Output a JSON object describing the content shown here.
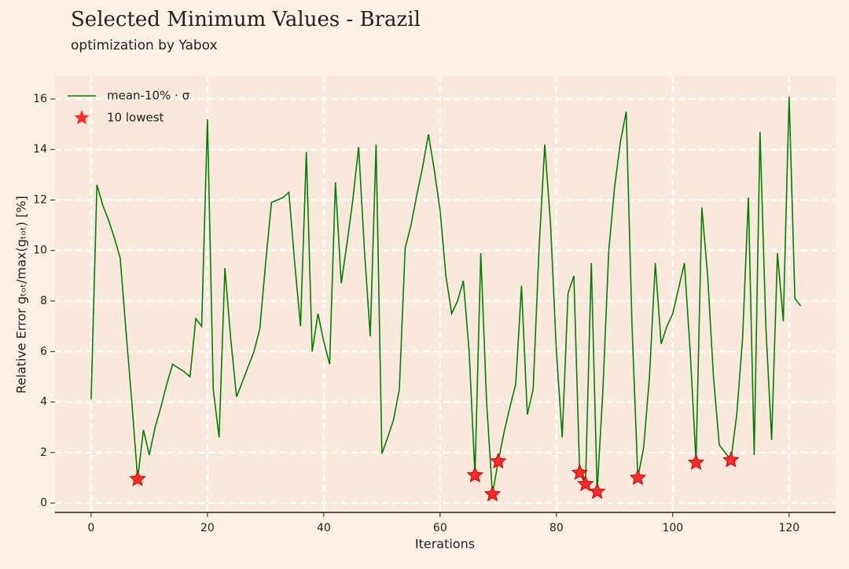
{
  "chart_data": {
    "type": "line",
    "title": "Selected Minimum Values - Brazil",
    "subtitle": "optimization by Yabox",
    "xlabel": "Iterations",
    "ylabel": "Relative Error gₜₒₜ/max(gₜₒₜ) [%]",
    "xlim": [
      -6.2,
      128
    ],
    "ylim": [
      -0.37,
      16.9
    ],
    "xticks": [
      0,
      20,
      40,
      60,
      80,
      100,
      120
    ],
    "yticks": [
      0,
      2,
      4,
      6,
      8,
      10,
      12,
      14,
      16
    ],
    "grid": true,
    "legend": "upper left",
    "series": [
      {
        "name": "mean-10% · σ",
        "type": "line",
        "color": "#008000",
        "x": [
          0,
          1,
          2,
          3,
          4,
          5,
          6,
          7,
          8,
          9,
          10,
          11,
          12,
          13,
          14,
          15,
          16,
          17,
          18,
          19,
          20,
          21,
          22,
          23,
          24,
          25,
          26,
          27,
          28,
          29,
          30,
          31,
          32,
          33,
          34,
          35,
          36,
          37,
          38,
          39,
          40,
          41,
          42,
          43,
          44,
          45,
          46,
          47,
          48,
          49,
          50,
          51,
          52,
          53,
          54,
          55,
          56,
          57,
          58,
          59,
          60,
          61,
          62,
          63,
          64,
          65,
          66,
          67,
          68,
          69,
          70,
          71,
          72,
          73,
          74,
          75,
          76,
          77,
          78,
          79,
          80,
          81,
          82,
          83,
          84,
          85,
          86,
          87,
          88,
          89,
          90,
          91,
          92,
          93,
          94,
          95,
          96,
          97,
          98,
          99,
          100,
          101,
          102,
          103,
          104,
          105,
          106,
          107,
          108,
          109,
          110,
          111,
          112,
          113,
          114,
          115,
          116,
          117,
          118,
          119,
          120,
          121,
          122
        ],
        "values": [
          4.1,
          12.6,
          11.8,
          11.2,
          10.5,
          9.7,
          6.8,
          4.0,
          0.95,
          2.9,
          1.9,
          3.0,
          3.8,
          4.7,
          5.5,
          5.35,
          5.2,
          5.0,
          7.3,
          7.0,
          15.2,
          4.5,
          2.6,
          9.3,
          6.5,
          4.2,
          4.8,
          5.4,
          6.0,
          6.9,
          9.5,
          11.9,
          12.0,
          12.1,
          12.3,
          9.5,
          7.0,
          13.9,
          6.0,
          7.5,
          6.4,
          5.5,
          12.7,
          8.7,
          10.3,
          12.0,
          14.1,
          10.0,
          6.6,
          14.2,
          1.95,
          2.6,
          3.3,
          4.5,
          10.1,
          11.0,
          12.2,
          13.3,
          14.6,
          13.2,
          11.6,
          9.0,
          7.5,
          8.0,
          8.8,
          6.0,
          1.1,
          9.9,
          4.0,
          0.35,
          1.65,
          2.8,
          3.8,
          4.7,
          8.6,
          3.5,
          4.5,
          10.0,
          14.2,
          11.0,
          6.0,
          2.6,
          8.3,
          9.0,
          1.2,
          0.75,
          9.5,
          0.45,
          4.5,
          10.0,
          12.5,
          14.3,
          15.5,
          7.0,
          1.0,
          2.2,
          5.0,
          9.5,
          6.3,
          7.0,
          7.5,
          8.5,
          9.5,
          6.0,
          1.6,
          11.7,
          9.0,
          5.0,
          2.3,
          2.0,
          1.7,
          3.5,
          6.5,
          12.1,
          1.9,
          14.7,
          7.0,
          2.5,
          9.9,
          7.2,
          16.1,
          8.1,
          7.8
        ]
      },
      {
        "name": "10 lowest",
        "type": "scatter",
        "color": "#ff2a2a",
        "x": [
          8,
          66,
          69,
          70,
          84,
          85,
          87,
          94,
          104,
          110
        ],
        "values": [
          0.95,
          1.1,
          0.35,
          1.65,
          1.2,
          0.75,
          0.45,
          1.0,
          1.6,
          1.7
        ]
      }
    ]
  }
}
